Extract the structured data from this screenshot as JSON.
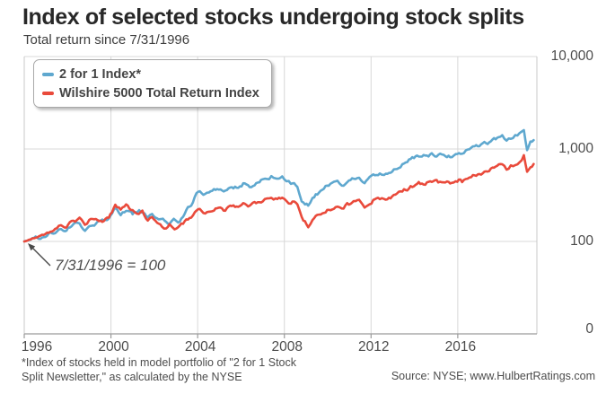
{
  "header": {
    "title": "Index of selected stocks undergoing stock splits",
    "subtitle": "Total return since 7/31/1996"
  },
  "footer": {
    "footnote_line1": "*Index of stocks held in model portfolio of \"2 for 1 Stock",
    "footnote_line2": "Split Newsletter,\" as calculated by the NYSE",
    "source": "Source: NYSE; www.HulbertRatings.com"
  },
  "colors": {
    "series_blue": "#5fa8cf",
    "series_red": "#e94a3b",
    "grid": "#d8d8d8",
    "axis": "#9b9b9b",
    "text": "#4c4c4c"
  },
  "chart_data": {
    "type": "line",
    "title": "Index of selected stocks undergoing stock splits",
    "subtitle": "Total return since 7/31/1996",
    "grid": true,
    "legend_position": "top-left",
    "annotation": {
      "text": "7/31/1996 = 100"
    },
    "x_axis": {
      "range": [
        1996,
        2019.65
      ],
      "ticks": [
        {
          "label": "1996",
          "year": 1996
        },
        {
          "label": "2000",
          "year": 2000
        },
        {
          "label": "2004",
          "year": 2004
        },
        {
          "label": "2008",
          "year": 2008
        },
        {
          "label": "2012",
          "year": 2012
        },
        {
          "label": "2016",
          "year": 2016
        }
      ]
    },
    "y_axis": {
      "scale": "log",
      "position": "right",
      "range": [
        10,
        10000
      ],
      "ticks": [
        {
          "label": "10,000",
          "value": 10000
        },
        {
          "label": "1,000",
          "value": 1000
        },
        {
          "label": "100",
          "value": 100
        },
        {
          "label": "0",
          "value": null
        }
      ]
    },
    "series": [
      {
        "name": "2 for 1 Index*",
        "color": "#5fa8cf",
        "points": [
          [
            1996.0,
            100
          ],
          [
            1996.3,
            103
          ],
          [
            1996.6,
            110
          ],
          [
            1996.9,
            114
          ],
          [
            1997.2,
            122
          ],
          [
            1997.5,
            131
          ],
          [
            1997.7,
            136
          ],
          [
            1997.8,
            128
          ],
          [
            1998.1,
            144
          ],
          [
            1998.35,
            152
          ],
          [
            1998.55,
            159
          ],
          [
            1998.8,
            131
          ],
          [
            1999.0,
            149
          ],
          [
            1999.3,
            158
          ],
          [
            1999.6,
            166
          ],
          [
            1999.9,
            178
          ],
          [
            2000.05,
            195
          ],
          [
            2000.2,
            222
          ],
          [
            2000.45,
            200
          ],
          [
            2000.7,
            218
          ],
          [
            2001.0,
            200
          ],
          [
            2001.3,
            221
          ],
          [
            2001.55,
            195
          ],
          [
            2001.7,
            176
          ],
          [
            2001.9,
            196
          ],
          [
            2002.2,
            168
          ],
          [
            2002.4,
            181
          ],
          [
            2002.7,
            157
          ],
          [
            2002.9,
            169
          ],
          [
            2003.1,
            161
          ],
          [
            2003.4,
            200
          ],
          [
            2003.7,
            252
          ],
          [
            2003.95,
            330
          ],
          [
            2004.1,
            345
          ],
          [
            2004.35,
            326
          ],
          [
            2004.6,
            342
          ],
          [
            2004.9,
            362
          ],
          [
            2005.2,
            352
          ],
          [
            2005.5,
            377
          ],
          [
            2005.8,
            392
          ],
          [
            2006.1,
            420
          ],
          [
            2006.4,
            399
          ],
          [
            2006.7,
            430
          ],
          [
            2007.0,
            459
          ],
          [
            2007.2,
            480
          ],
          [
            2007.4,
            502
          ],
          [
            2007.6,
            473
          ],
          [
            2007.9,
            497
          ],
          [
            2008.1,
            449
          ],
          [
            2008.3,
            423
          ],
          [
            2008.45,
            446
          ],
          [
            2008.6,
            398
          ],
          [
            2008.8,
            288
          ],
          [
            2008.95,
            262
          ],
          [
            2009.1,
            243
          ],
          [
            2009.3,
            291
          ],
          [
            2009.6,
            340
          ],
          [
            2009.9,
            386
          ],
          [
            2010.2,
            412
          ],
          [
            2010.45,
            436
          ],
          [
            2010.65,
            397
          ],
          [
            2010.9,
            446
          ],
          [
            2011.2,
            489
          ],
          [
            2011.45,
            501
          ],
          [
            2011.7,
            424
          ],
          [
            2011.85,
            456
          ],
          [
            2012.1,
            519
          ],
          [
            2012.4,
            544
          ],
          [
            2012.6,
            524
          ],
          [
            2012.9,
            566
          ],
          [
            2013.2,
            636
          ],
          [
            2013.6,
            718
          ],
          [
            2013.9,
            782
          ],
          [
            2014.2,
            852
          ],
          [
            2014.5,
            842
          ],
          [
            2014.8,
            872
          ],
          [
            2015.1,
            856
          ],
          [
            2015.35,
            893
          ],
          [
            2015.65,
            823
          ],
          [
            2015.9,
            898
          ],
          [
            2016.05,
            938
          ],
          [
            2016.2,
            903
          ],
          [
            2016.45,
            985
          ],
          [
            2016.7,
            1030
          ],
          [
            2017.0,
            1088
          ],
          [
            2017.3,
            1158
          ],
          [
            2017.6,
            1228
          ],
          [
            2017.9,
            1330
          ],
          [
            2018.05,
            1398
          ],
          [
            2018.25,
            1218
          ],
          [
            2018.45,
            1318
          ],
          [
            2018.65,
            1388
          ],
          [
            2018.85,
            1462
          ],
          [
            2019.05,
            1560
          ],
          [
            2019.2,
            1005
          ],
          [
            2019.35,
            1172
          ],
          [
            2019.5,
            1248
          ]
        ]
      },
      {
        "name": "Wilshire 5000 Total Return Index",
        "color": "#e94a3b",
        "points": [
          [
            1996.0,
            100
          ],
          [
            1996.3,
            104
          ],
          [
            1996.6,
            112
          ],
          [
            1996.9,
            118
          ],
          [
            1997.2,
            127
          ],
          [
            1997.5,
            138
          ],
          [
            1997.7,
            147
          ],
          [
            1997.8,
            139
          ],
          [
            1998.1,
            158
          ],
          [
            1998.35,
            168
          ],
          [
            1998.55,
            179
          ],
          [
            1998.8,
            147
          ],
          [
            1999.0,
            168
          ],
          [
            1999.3,
            175
          ],
          [
            1999.6,
            171
          ],
          [
            1999.9,
            188
          ],
          [
            2000.05,
            210
          ],
          [
            2000.2,
            249
          ],
          [
            2000.45,
            227
          ],
          [
            2000.7,
            243
          ],
          [
            2001.0,
            213
          ],
          [
            2001.2,
            196
          ],
          [
            2001.45,
            214
          ],
          [
            2001.7,
            172
          ],
          [
            2001.9,
            189
          ],
          [
            2002.2,
            163
          ],
          [
            2002.35,
            151
          ],
          [
            2002.55,
            137
          ],
          [
            2002.7,
            152
          ],
          [
            2002.85,
            134
          ],
          [
            2003.1,
            141
          ],
          [
            2003.4,
            161
          ],
          [
            2003.7,
            186
          ],
          [
            2003.95,
            208
          ],
          [
            2004.1,
            216
          ],
          [
            2004.35,
            206
          ],
          [
            2004.6,
            214
          ],
          [
            2004.9,
            227
          ],
          [
            2005.2,
            221
          ],
          [
            2005.5,
            234
          ],
          [
            2005.8,
            241
          ],
          [
            2006.1,
            254
          ],
          [
            2006.4,
            244
          ],
          [
            2006.7,
            261
          ],
          [
            2007.0,
            278
          ],
          [
            2007.2,
            292
          ],
          [
            2007.4,
            305
          ],
          [
            2007.6,
            288
          ],
          [
            2007.9,
            301
          ],
          [
            2008.1,
            274
          ],
          [
            2008.3,
            259
          ],
          [
            2008.45,
            271
          ],
          [
            2008.6,
            241
          ],
          [
            2008.8,
            176
          ],
          [
            2008.95,
            162
          ],
          [
            2009.1,
            147
          ],
          [
            2009.3,
            172
          ],
          [
            2009.6,
            199
          ],
          [
            2009.9,
            218
          ],
          [
            2010.2,
            231
          ],
          [
            2010.45,
            244
          ],
          [
            2010.65,
            221
          ],
          [
            2010.9,
            248
          ],
          [
            2011.2,
            266
          ],
          [
            2011.45,
            272
          ],
          [
            2011.7,
            231
          ],
          [
            2011.85,
            247
          ],
          [
            2012.1,
            279
          ],
          [
            2012.4,
            291
          ],
          [
            2012.6,
            283
          ],
          [
            2012.9,
            302
          ],
          [
            2013.2,
            330
          ],
          [
            2013.6,
            364
          ],
          [
            2013.9,
            392
          ],
          [
            2014.2,
            420
          ],
          [
            2014.5,
            428
          ],
          [
            2014.8,
            443
          ],
          [
            2015.1,
            437
          ],
          [
            2015.35,
            452
          ],
          [
            2015.65,
            416
          ],
          [
            2015.9,
            452
          ],
          [
            2016.05,
            468
          ],
          [
            2016.2,
            441
          ],
          [
            2016.45,
            492
          ],
          [
            2016.7,
            515
          ],
          [
            2017.0,
            541
          ],
          [
            2017.3,
            572
          ],
          [
            2017.6,
            606
          ],
          [
            2017.9,
            651
          ],
          [
            2018.05,
            684
          ],
          [
            2018.25,
            601
          ],
          [
            2018.45,
            648
          ],
          [
            2018.65,
            682
          ],
          [
            2018.85,
            722
          ],
          [
            2019.05,
            840
          ],
          [
            2019.2,
            548
          ],
          [
            2019.35,
            642
          ],
          [
            2019.5,
            688
          ]
        ]
      }
    ]
  }
}
